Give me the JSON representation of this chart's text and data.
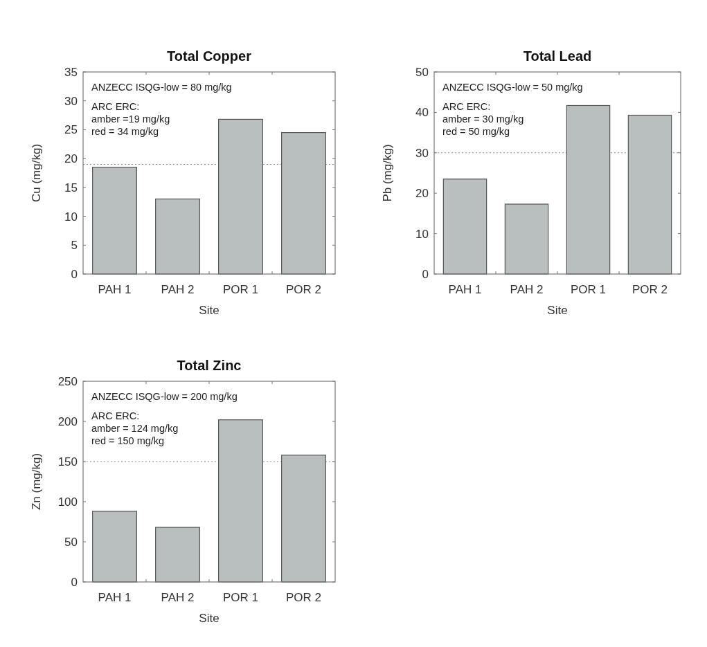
{
  "chart_data": [
    {
      "type": "bar",
      "title": "Total Copper",
      "xlabel": "Site",
      "ylabel": "Cu (mg/kg)",
      "categories": [
        "PAH 1",
        "PAH 2",
        "POR 1",
        "POR 2"
      ],
      "values": [
        18.5,
        13.0,
        26.8,
        24.5
      ],
      "color": "#b9bebe",
      "ylim": [
        0,
        35
      ],
      "yticks": [
        0,
        5,
        10,
        15,
        20,
        25,
        30,
        35
      ],
      "grid": false,
      "ref_lines": [
        {
          "axis": "y",
          "value": 19,
          "color": "#888888",
          "line_style": "dotted"
        }
      ],
      "annotations": [
        "ANZECC ISQG-low = 80 mg/kg",
        "ARC ERC:",
        "amber =19 mg/kg",
        "red = 34 mg/kg"
      ]
    },
    {
      "type": "bar",
      "title": "Total Lead",
      "xlabel": "Site",
      "ylabel": "Pb (mg/kg)",
      "categories": [
        "PAH 1",
        "PAH 2",
        "POR 1",
        "POR 2"
      ],
      "values": [
        23.5,
        17.3,
        41.7,
        39.3
      ],
      "color": "#b9bebe",
      "ylim": [
        0,
        50
      ],
      "yticks": [
        0,
        10,
        20,
        30,
        40,
        50
      ],
      "grid": false,
      "ref_lines": [
        {
          "axis": "y",
          "value": 30,
          "color": "#888888",
          "line_style": "dotted"
        }
      ],
      "annotations": [
        "ANZECC ISQG-low = 50 mg/kg",
        "ARC ERC:",
        "amber = 30 mg/kg",
        "red = 50 mg/kg"
      ]
    },
    {
      "type": "bar",
      "title": "Total Zinc",
      "xlabel": "Site",
      "ylabel": "Zn (mg/kg)",
      "categories": [
        "PAH 1",
        "PAH 2",
        "POR 1",
        "POR 2"
      ],
      "values": [
        88,
        68,
        202,
        158
      ],
      "color": "#b9bebe",
      "ylim": [
        0,
        250
      ],
      "yticks": [
        0,
        50,
        100,
        150,
        200,
        250
      ],
      "grid": false,
      "ref_lines": [
        {
          "axis": "y",
          "value": 150,
          "color": "#888888",
          "line_style": "dotted"
        }
      ],
      "annotations": [
        "ANZECC ISQG-low = 200 mg/kg",
        "ARC ERC:",
        "amber = 124 mg/kg",
        "red = 150 mg/kg"
      ]
    }
  ]
}
